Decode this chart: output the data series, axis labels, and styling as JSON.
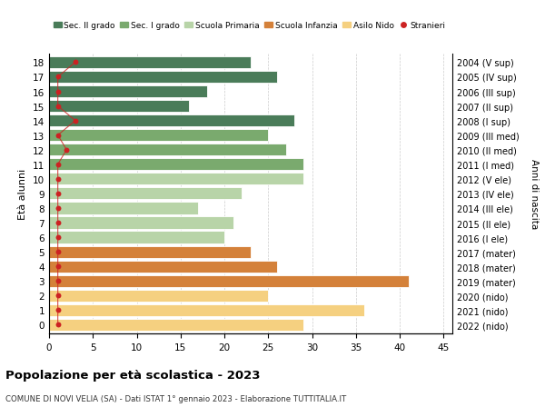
{
  "ages": [
    18,
    17,
    16,
    15,
    14,
    13,
    12,
    11,
    10,
    9,
    8,
    7,
    6,
    5,
    4,
    3,
    2,
    1,
    0
  ],
  "right_labels": [
    "2004 (V sup)",
    "2005 (IV sup)",
    "2006 (III sup)",
    "2007 (II sup)",
    "2008 (I sup)",
    "2009 (III med)",
    "2010 (II med)",
    "2011 (I med)",
    "2012 (V ele)",
    "2013 (IV ele)",
    "2014 (III ele)",
    "2015 (II ele)",
    "2016 (I ele)",
    "2017 (mater)",
    "2018 (mater)",
    "2019 (mater)",
    "2020 (nido)",
    "2021 (nido)",
    "2022 (nido)"
  ],
  "bar_values": [
    23,
    26,
    18,
    16,
    28,
    25,
    27,
    29,
    29,
    22,
    17,
    21,
    20,
    23,
    26,
    41,
    25,
    36,
    29
  ],
  "bar_colors": [
    "#4a7c59",
    "#4a7c59",
    "#4a7c59",
    "#4a7c59",
    "#4a7c59",
    "#7aaa6e",
    "#7aaa6e",
    "#7aaa6e",
    "#b8d4a8",
    "#b8d4a8",
    "#b8d4a8",
    "#b8d4a8",
    "#b8d4a8",
    "#d4813a",
    "#d4813a",
    "#d4813a",
    "#f5d080",
    "#f5d080",
    "#f5d080"
  ],
  "stranieri_values": [
    3,
    1,
    1,
    1,
    3,
    1,
    2,
    1,
    1,
    1,
    1,
    1,
    1,
    1,
    1,
    1,
    1,
    1,
    1
  ],
  "legend_items": [
    {
      "label": "Sec. II grado",
      "color": "#4a7c59",
      "type": "patch"
    },
    {
      "label": "Sec. I grado",
      "color": "#7aaa6e",
      "type": "patch"
    },
    {
      "label": "Scuola Primaria",
      "color": "#b8d4a8",
      "type": "patch"
    },
    {
      "label": "Scuola Infanzia",
      "color": "#d4813a",
      "type": "patch"
    },
    {
      "label": "Asilo Nido",
      "color": "#f5d080",
      "type": "patch"
    },
    {
      "label": "Stranieri",
      "color": "#cc2222",
      "type": "marker"
    }
  ],
  "ylabel": "Età alunni",
  "right_ylabel": "Anni di nascita",
  "xlim": [
    0,
    46
  ],
  "xticks": [
    0,
    5,
    10,
    15,
    20,
    25,
    30,
    35,
    40,
    45
  ],
  "title": "Popolazione per età scolastica - 2023",
  "subtitle": "COMUNE DI NOVI VELIA (SA) - Dati ISTAT 1° gennaio 2023 - Elaborazione TUTTITALIA.IT",
  "bar_height": 0.82,
  "fig_width": 6.0,
  "fig_height": 4.6,
  "dpi": 100
}
